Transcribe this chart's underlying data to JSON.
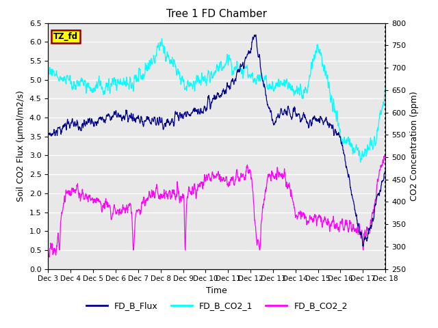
{
  "title": "Tree 1 FD Chamber",
  "xlabel": "Time",
  "ylabel_left": "Soil CO2 Flux (μmol/m2/s)",
  "ylabel_right": "CO2 Concentration (ppm)",
  "ylim_left": [
    0.0,
    6.5
  ],
  "ylim_right": [
    250,
    800
  ],
  "yticks_left": [
    0.0,
    0.5,
    1.0,
    1.5,
    2.0,
    2.5,
    3.0,
    3.5,
    4.0,
    4.5,
    5.0,
    5.5,
    6.0,
    6.5
  ],
  "yticks_right": [
    250,
    300,
    350,
    400,
    450,
    500,
    550,
    600,
    650,
    700,
    750,
    800
  ],
  "xtick_labels": [
    "Dec 3",
    "Dec 4",
    "Dec 5",
    "Dec 6",
    "Dec 7",
    "Dec 8",
    "Dec 9",
    "Dec 10",
    "Dec 11",
    "Dec 12",
    "Dec 13",
    "Dec 14",
    "Dec 15",
    "Dec 16",
    "Dec 17",
    "Dec 18"
  ],
  "color_flux": "#00008B",
  "color_co2_1": "#00FFFF",
  "color_co2_2": "#FF00FF",
  "legend_labels": [
    "FD_B_Flux",
    "FD_B_CO2_1",
    "FD_B_CO2_2"
  ],
  "annotation_text": "TZ_fd",
  "annotation_bg": "#FFFF00",
  "annotation_border": "#8B0000",
  "plot_bg": "#E8E8E8",
  "grid_color": "#FFFFFF",
  "n_points": 1500
}
